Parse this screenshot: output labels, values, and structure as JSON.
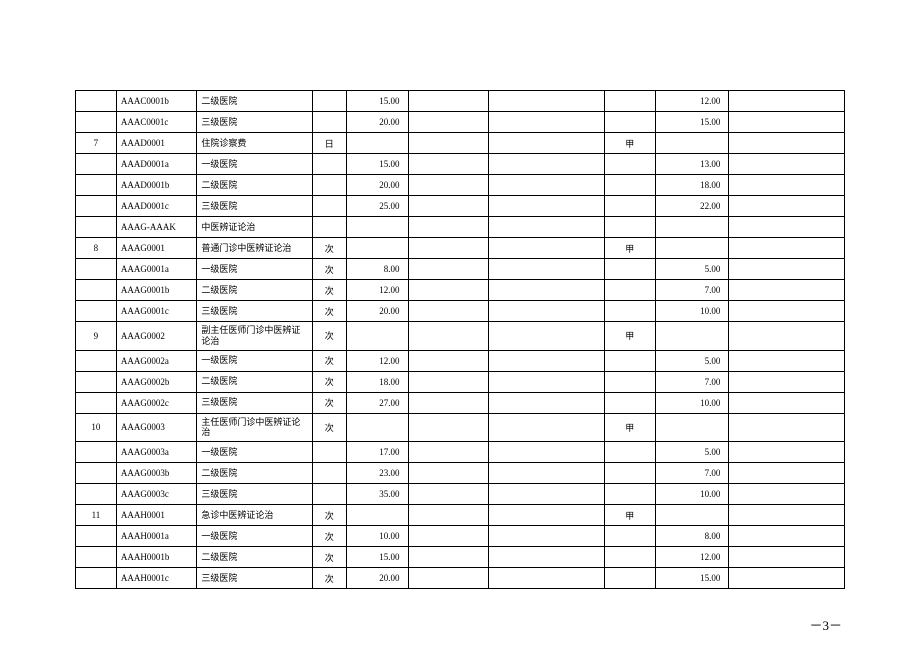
{
  "page_number": "－3－",
  "table": {
    "columns": [
      {
        "key": "idx",
        "class": "col-idx"
      },
      {
        "key": "code",
        "class": "col-code"
      },
      {
        "key": "name",
        "class": "col-name"
      },
      {
        "key": "unit",
        "class": "col-unit"
      },
      {
        "key": "price",
        "class": "col-price"
      },
      {
        "key": "b1",
        "class": "col-blank1"
      },
      {
        "key": "b2",
        "class": "col-blank2"
      },
      {
        "key": "cls",
        "class": "col-cls"
      },
      {
        "key": "price2",
        "class": "col-price2"
      },
      {
        "key": "b3",
        "class": "col-blank3"
      }
    ],
    "rows": [
      {
        "idx": "",
        "code": "AAAC0001b",
        "name": "二级医院",
        "unit": "",
        "price": "15.00",
        "b1": "",
        "b2": "",
        "cls": "",
        "price2": "12.00",
        "b3": ""
      },
      {
        "idx": "",
        "code": "AAAC0001c",
        "name": "三级医院",
        "unit": "",
        "price": "20.00",
        "b1": "",
        "b2": "",
        "cls": "",
        "price2": "15.00",
        "b3": ""
      },
      {
        "idx": "7",
        "code": "AAAD0001",
        "name": "住院诊察费",
        "unit": "日",
        "price": "",
        "b1": "",
        "b2": "",
        "cls": "甲",
        "price2": "",
        "b3": ""
      },
      {
        "idx": "",
        "code": "AAAD0001a",
        "name": "一级医院",
        "unit": "",
        "price": "15.00",
        "b1": "",
        "b2": "",
        "cls": "",
        "price2": "13.00",
        "b3": ""
      },
      {
        "idx": "",
        "code": "AAAD0001b",
        "name": "二级医院",
        "unit": "",
        "price": "20.00",
        "b1": "",
        "b2": "",
        "cls": "",
        "price2": "18.00",
        "b3": ""
      },
      {
        "idx": "",
        "code": "AAAD0001c",
        "name": "三级医院",
        "unit": "",
        "price": "25.00",
        "b1": "",
        "b2": "",
        "cls": "",
        "price2": "22.00",
        "b3": ""
      },
      {
        "idx": "",
        "code": "AAAG-AAAK",
        "name": "中医辨证论治",
        "unit": "",
        "price": "",
        "b1": "",
        "b2": "",
        "cls": "",
        "price2": "",
        "b3": ""
      },
      {
        "idx": "8",
        "code": "AAAG0001",
        "name": "普通门诊中医辨证论治",
        "unit": "次",
        "price": "",
        "b1": "",
        "b2": "",
        "cls": "甲",
        "price2": "",
        "b3": ""
      },
      {
        "idx": "",
        "code": "AAAG0001a",
        "name": "一级医院",
        "unit": "次",
        "price": "8.00",
        "b1": "",
        "b2": "",
        "cls": "",
        "price2": "5.00",
        "b3": ""
      },
      {
        "idx": "",
        "code": "AAAG0001b",
        "name": "二级医院",
        "unit": "次",
        "price": "12.00",
        "b1": "",
        "b2": "",
        "cls": "",
        "price2": "7.00",
        "b3": ""
      },
      {
        "idx": "",
        "code": "AAAG0001c",
        "name": "三级医院",
        "unit": "次",
        "price": "20.00",
        "b1": "",
        "b2": "",
        "cls": "",
        "price2": "10.00",
        "b3": ""
      },
      {
        "idx": "9",
        "code": "AAAG0002",
        "name": "副主任医师门诊中医辨证论治",
        "unit": "次",
        "price": "",
        "b1": "",
        "b2": "",
        "cls": "甲",
        "price2": "",
        "b3": ""
      },
      {
        "idx": "",
        "code": "AAAG0002a",
        "name": "一级医院",
        "unit": "次",
        "price": "12.00",
        "b1": "",
        "b2": "",
        "cls": "",
        "price2": "5.00",
        "b3": ""
      },
      {
        "idx": "",
        "code": "AAAG0002b",
        "name": "二级医院",
        "unit": "次",
        "price": "18.00",
        "b1": "",
        "b2": "",
        "cls": "",
        "price2": "7.00",
        "b3": ""
      },
      {
        "idx": "",
        "code": "AAAG0002c",
        "name": "三级医院",
        "unit": "次",
        "price": "27.00",
        "b1": "",
        "b2": "",
        "cls": "",
        "price2": "10.00",
        "b3": ""
      },
      {
        "idx": "10",
        "code": "AAAG0003",
        "name": "主任医师门诊中医辨证论治",
        "unit": "次",
        "price": "",
        "b1": "",
        "b2": "",
        "cls": "甲",
        "price2": "",
        "b3": ""
      },
      {
        "idx": "",
        "code": "AAAG0003a",
        "name": "一级医院",
        "unit": "",
        "price": "17.00",
        "b1": "",
        "b2": "",
        "cls": "",
        "price2": "5.00",
        "b3": ""
      },
      {
        "idx": "",
        "code": "AAAG0003b",
        "name": "二级医院",
        "unit": "",
        "price": "23.00",
        "b1": "",
        "b2": "",
        "cls": "",
        "price2": "7.00",
        "b3": ""
      },
      {
        "idx": "",
        "code": "AAAG0003c",
        "name": "三级医院",
        "unit": "",
        "price": "35.00",
        "b1": "",
        "b2": "",
        "cls": "",
        "price2": "10.00",
        "b3": ""
      },
      {
        "idx": "11",
        "code": "AAAH0001",
        "name": "急诊中医辨证论治",
        "unit": "次",
        "price": "",
        "b1": "",
        "b2": "",
        "cls": "甲",
        "price2": "",
        "b3": ""
      },
      {
        "idx": "",
        "code": "AAAH0001a",
        "name": "一级医院",
        "unit": "次",
        "price": "10.00",
        "b1": "",
        "b2": "",
        "cls": "",
        "price2": "8.00",
        "b3": ""
      },
      {
        "idx": "",
        "code": "AAAH0001b",
        "name": "二级医院",
        "unit": "次",
        "price": "15.00",
        "b1": "",
        "b2": "",
        "cls": "",
        "price2": "12.00",
        "b3": ""
      },
      {
        "idx": "",
        "code": "AAAH0001c",
        "name": "三级医院",
        "unit": "次",
        "price": "20.00",
        "b1": "",
        "b2": "",
        "cls": "",
        "price2": "15.00",
        "b3": ""
      }
    ]
  }
}
